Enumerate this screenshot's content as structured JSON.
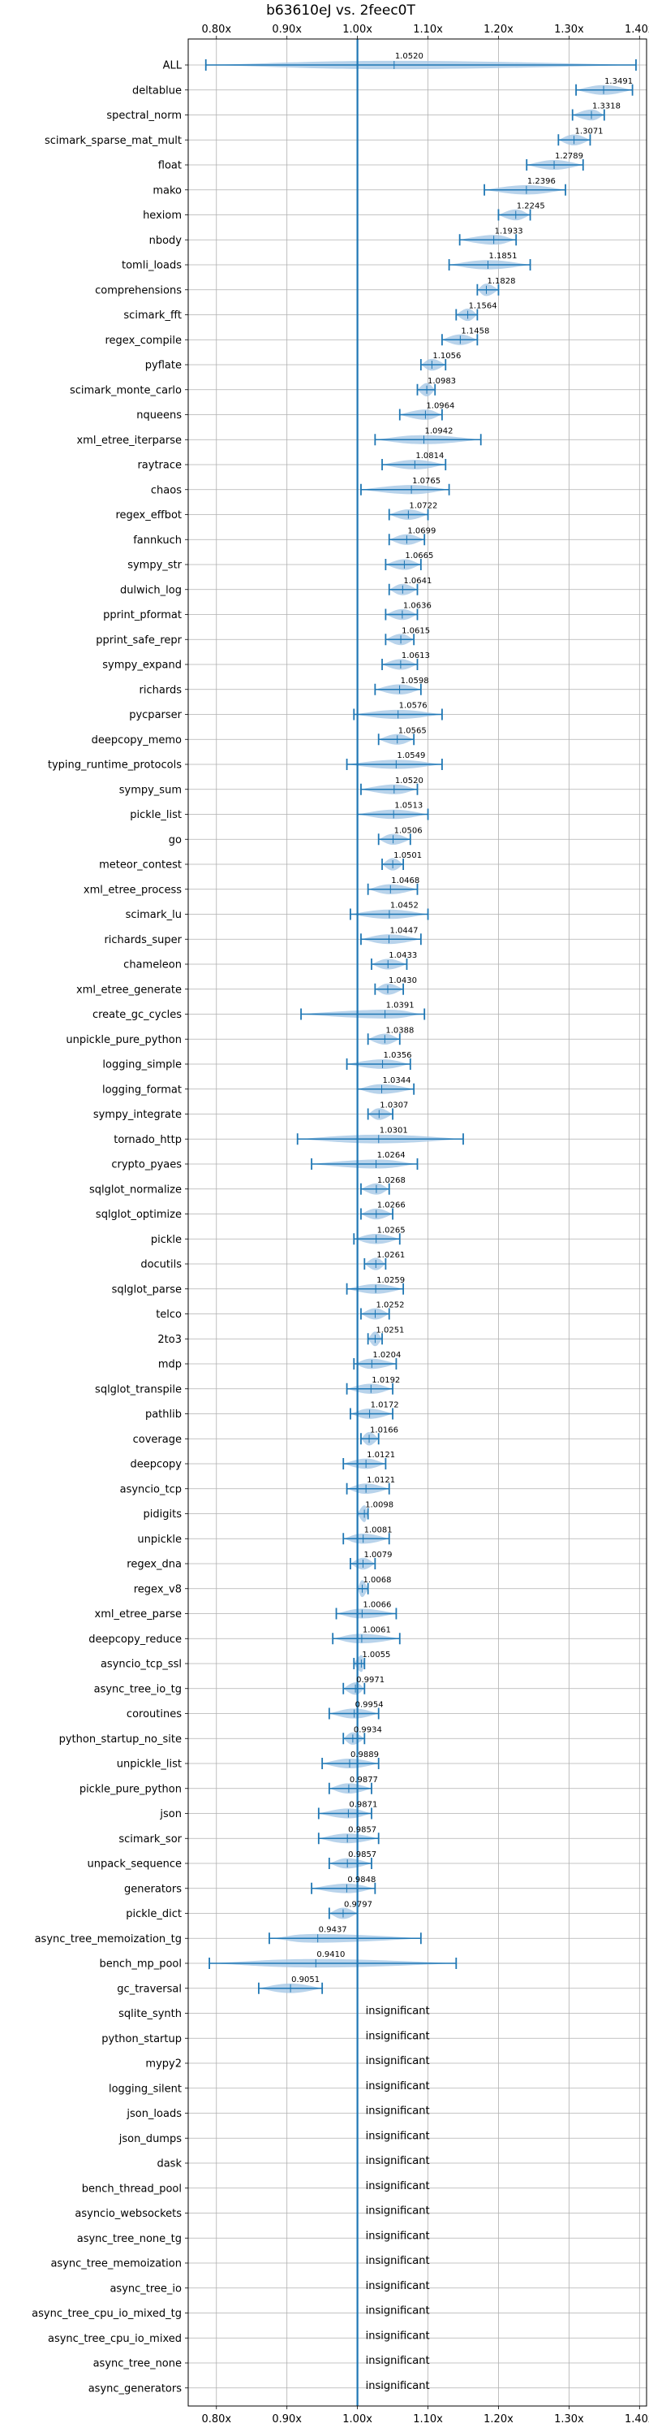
{
  "chart_data": {
    "type": "violin",
    "title": "b63610eJ vs. 2feec0T",
    "xlim": [
      0.76,
      1.41
    ],
    "xticks": [
      0.8,
      0.9,
      1.0,
      1.1,
      1.2,
      1.3,
      1.4
    ],
    "xtick_labels": [
      "0.80x",
      "0.90x",
      "1.00x",
      "1.10x",
      "1.20x",
      "1.30x",
      "1.40x"
    ],
    "reference_line": 1.0,
    "grid": true,
    "colors": {
      "violin": "#a6c8e6",
      "line": "#1f77b4",
      "grid": "#b0b0b0"
    },
    "insignificant_label": "insignificant",
    "categories": [
      "ALL",
      "deltablue",
      "spectral_norm",
      "scimark_sparse_mat_mult",
      "float",
      "mako",
      "hexiom",
      "nbody",
      "tomli_loads",
      "comprehensions",
      "scimark_fft",
      "regex_compile",
      "pyflate",
      "scimark_monte_carlo",
      "nqueens",
      "xml_etree_iterparse",
      "raytrace",
      "chaos",
      "regex_effbot",
      "fannkuch",
      "sympy_str",
      "dulwich_log",
      "pprint_pformat",
      "pprint_safe_repr",
      "sympy_expand",
      "richards",
      "pycparser",
      "deepcopy_memo",
      "typing_runtime_protocols",
      "sympy_sum",
      "pickle_list",
      "go",
      "meteor_contest",
      "xml_etree_process",
      "scimark_lu",
      "richards_super",
      "chameleon",
      "xml_etree_generate",
      "create_gc_cycles",
      "unpickle_pure_python",
      "logging_simple",
      "logging_format",
      "sympy_integrate",
      "tornado_http",
      "crypto_pyaes",
      "sqlglot_normalize",
      "sqlglot_optimize",
      "pickle",
      "docutils",
      "sqlglot_parse",
      "telco",
      "2to3",
      "mdp",
      "sqlglot_transpile",
      "pathlib",
      "coverage",
      "deepcopy",
      "asyncio_tcp",
      "pidigits",
      "unpickle",
      "regex_dna",
      "regex_v8",
      "xml_etree_parse",
      "deepcopy_reduce",
      "asyncio_tcp_ssl",
      "async_tree_io_tg",
      "coroutines",
      "python_startup_no_site",
      "unpickle_list",
      "pickle_pure_python",
      "json",
      "scimark_sor",
      "unpack_sequence",
      "generators",
      "pickle_dict",
      "async_tree_memoization_tg",
      "bench_mp_pool",
      "gc_traversal",
      "sqlite_synth",
      "python_startup",
      "mypy2",
      "logging_silent",
      "json_loads",
      "json_dumps",
      "dask",
      "bench_thread_pool",
      "asyncio_websockets",
      "async_tree_none_tg",
      "async_tree_memoization",
      "async_tree_io",
      "async_tree_cpu_io_mixed_tg",
      "async_tree_cpu_io_mixed",
      "async_tree_none",
      "async_generators"
    ],
    "means": [
      1.052,
      1.3491,
      1.3318,
      1.3071,
      1.2789,
      1.2396,
      1.2245,
      1.1933,
      1.1851,
      1.1828,
      1.1564,
      1.1458,
      1.1056,
      1.0983,
      1.0964,
      1.0942,
      1.0814,
      1.0765,
      1.0722,
      1.0699,
      1.0665,
      1.0641,
      1.0636,
      1.0615,
      1.0613,
      1.0598,
      1.0576,
      1.0565,
      1.0549,
      1.052,
      1.0513,
      1.0506,
      1.0501,
      1.0468,
      1.0452,
      1.0447,
      1.0433,
      1.043,
      1.0391,
      1.0388,
      1.0356,
      1.0344,
      1.0307,
      1.0301,
      1.0264,
      1.0268,
      1.0266,
      1.0265,
      1.0261,
      1.0259,
      1.0252,
      1.0251,
      1.0204,
      1.0192,
      1.0172,
      1.0166,
      1.0121,
      1.0121,
      1.0098,
      1.0081,
      1.0079,
      1.0068,
      1.0066,
      1.0061,
      1.0055,
      0.9971,
      0.9954,
      0.9934,
      0.9889,
      0.9877,
      0.9871,
      0.9857,
      0.9857,
      0.9848,
      0.9797,
      0.9437,
      0.941,
      0.9051,
      null,
      null,
      null,
      null,
      null,
      null,
      null,
      null,
      null,
      null,
      null,
      null,
      null,
      null,
      null,
      null
    ],
    "ranges": [
      [
        0.785,
        1.395
      ],
      [
        1.31,
        1.39
      ],
      [
        1.305,
        1.35
      ],
      [
        1.285,
        1.33
      ],
      [
        1.24,
        1.32
      ],
      [
        1.18,
        1.295
      ],
      [
        1.2,
        1.245
      ],
      [
        1.145,
        1.225
      ],
      [
        1.13,
        1.245
      ],
      [
        1.17,
        1.2
      ],
      [
        1.14,
        1.17
      ],
      [
        1.12,
        1.17
      ],
      [
        1.09,
        1.125
      ],
      [
        1.085,
        1.11
      ],
      [
        1.06,
        1.12
      ],
      [
        1.025,
        1.175
      ],
      [
        1.035,
        1.125
      ],
      [
        1.005,
        1.13
      ],
      [
        1.045,
        1.1
      ],
      [
        1.045,
        1.095
      ],
      [
        1.04,
        1.09
      ],
      [
        1.045,
        1.085
      ],
      [
        1.04,
        1.085
      ],
      [
        1.04,
        1.08
      ],
      [
        1.035,
        1.085
      ],
      [
        1.025,
        1.09
      ],
      [
        0.995,
        1.12
      ],
      [
        1.03,
        1.08
      ],
      [
        0.985,
        1.12
      ],
      [
        1.005,
        1.085
      ],
      [
        1.0,
        1.1
      ],
      [
        1.03,
        1.075
      ],
      [
        1.035,
        1.065
      ],
      [
        1.015,
        1.085
      ],
      [
        0.99,
        1.1
      ],
      [
        1.005,
        1.09
      ],
      [
        1.02,
        1.07
      ],
      [
        1.025,
        1.065
      ],
      [
        0.92,
        1.095
      ],
      [
        1.015,
        1.06
      ],
      [
        0.985,
        1.075
      ],
      [
        1.0,
        1.08
      ],
      [
        1.015,
        1.05
      ],
      [
        0.915,
        1.15
      ],
      [
        0.935,
        1.085
      ],
      [
        1.005,
        1.045
      ],
      [
        1.005,
        1.05
      ],
      [
        0.995,
        1.06
      ],
      [
        1.01,
        1.04
      ],
      [
        0.985,
        1.065
      ],
      [
        1.005,
        1.045
      ],
      [
        1.015,
        1.035
      ],
      [
        0.995,
        1.055
      ],
      [
        0.985,
        1.05
      ],
      [
        0.99,
        1.05
      ],
      [
        1.005,
        1.03
      ],
      [
        0.98,
        1.04
      ],
      [
        0.985,
        1.045
      ],
      [
        1.0,
        1.015
      ],
      [
        0.98,
        1.045
      ],
      [
        0.99,
        1.025
      ],
      [
        1.0,
        1.015
      ],
      [
        0.97,
        1.055
      ],
      [
        0.965,
        1.06
      ],
      [
        0.995,
        1.01
      ],
      [
        0.98,
        1.01
      ],
      [
        0.96,
        1.03
      ],
      [
        0.98,
        1.01
      ],
      [
        0.95,
        1.03
      ],
      [
        0.96,
        1.02
      ],
      [
        0.945,
        1.02
      ],
      [
        0.945,
        1.03
      ],
      [
        0.96,
        1.02
      ],
      [
        0.935,
        1.025
      ],
      [
        0.96,
        1.0
      ],
      [
        0.875,
        1.09
      ],
      [
        0.79,
        1.14
      ],
      [
        0.86,
        0.95
      ],
      null,
      null,
      null,
      null,
      null,
      null,
      null,
      null,
      null,
      null,
      null,
      null,
      null,
      null,
      null,
      null
    ]
  }
}
